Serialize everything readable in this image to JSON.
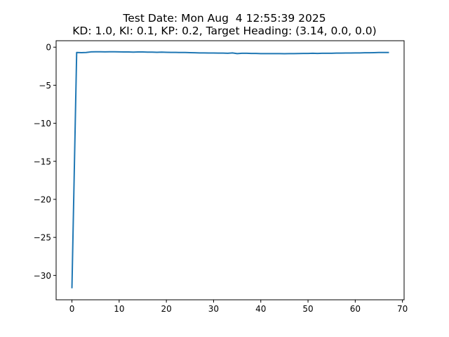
{
  "chart_data": {
    "type": "line",
    "title_lines": [
      "Test Date: Mon Aug  4 12:55:39 2025",
      "KD: 1.0, KI: 0.1, KP: 0.2, Target Heading: (3.14, 0.0, 0.0)"
    ],
    "xlabel": "",
    "ylabel": "",
    "xlim": [
      -3.35,
      70.35
    ],
    "ylim": [
      -33.2,
      0.85
    ],
    "x_ticks": [
      0,
      10,
      20,
      30,
      40,
      50,
      60,
      70
    ],
    "y_ticks": [
      0,
      -5,
      -10,
      -15,
      -20,
      -25,
      -30
    ],
    "x_tick_labels": [
      "0",
      "10",
      "20",
      "30",
      "40",
      "50",
      "60",
      "70"
    ],
    "y_tick_labels": [
      "0",
      "−5",
      "−10",
      "−15",
      "−20",
      "−25",
      "−30"
    ],
    "grid": false,
    "series": [
      {
        "color": "#1f77b4",
        "x": [
          0,
          1,
          2,
          3,
          4,
          5,
          6,
          7,
          8,
          9,
          10,
          11,
          12,
          13,
          14,
          15,
          16,
          17,
          18,
          19,
          20,
          21,
          22,
          23,
          24,
          25,
          26,
          27,
          28,
          29,
          30,
          31,
          32,
          33,
          34,
          35,
          36,
          37,
          38,
          39,
          40,
          41,
          42,
          43,
          44,
          45,
          46,
          47,
          48,
          49,
          50,
          51,
          52,
          53,
          54,
          55,
          56,
          57,
          58,
          59,
          60,
          61,
          62,
          63,
          64,
          65,
          66,
          67
        ],
        "y": [
          -31.6,
          -0.7,
          -0.72,
          -0.7,
          -0.62,
          -0.6,
          -0.6,
          -0.62,
          -0.6,
          -0.6,
          -0.62,
          -0.63,
          -0.63,
          -0.65,
          -0.63,
          -0.63,
          -0.65,
          -0.65,
          -0.67,
          -0.65,
          -0.67,
          -0.68,
          -0.68,
          -0.7,
          -0.7,
          -0.72,
          -0.73,
          -0.75,
          -0.75,
          -0.77,
          -0.77,
          -0.78,
          -0.78,
          -0.8,
          -0.75,
          -0.85,
          -0.8,
          -0.8,
          -0.82,
          -0.82,
          -0.85,
          -0.85,
          -0.85,
          -0.85,
          -0.85,
          -0.86,
          -0.85,
          -0.85,
          -0.83,
          -0.82,
          -0.82,
          -0.8,
          -0.82,
          -0.8,
          -0.8,
          -0.8,
          -0.78,
          -0.78,
          -0.77,
          -0.77,
          -0.75,
          -0.75,
          -0.73,
          -0.73,
          -0.72,
          -0.7,
          -0.7,
          -0.7
        ]
      }
    ]
  }
}
